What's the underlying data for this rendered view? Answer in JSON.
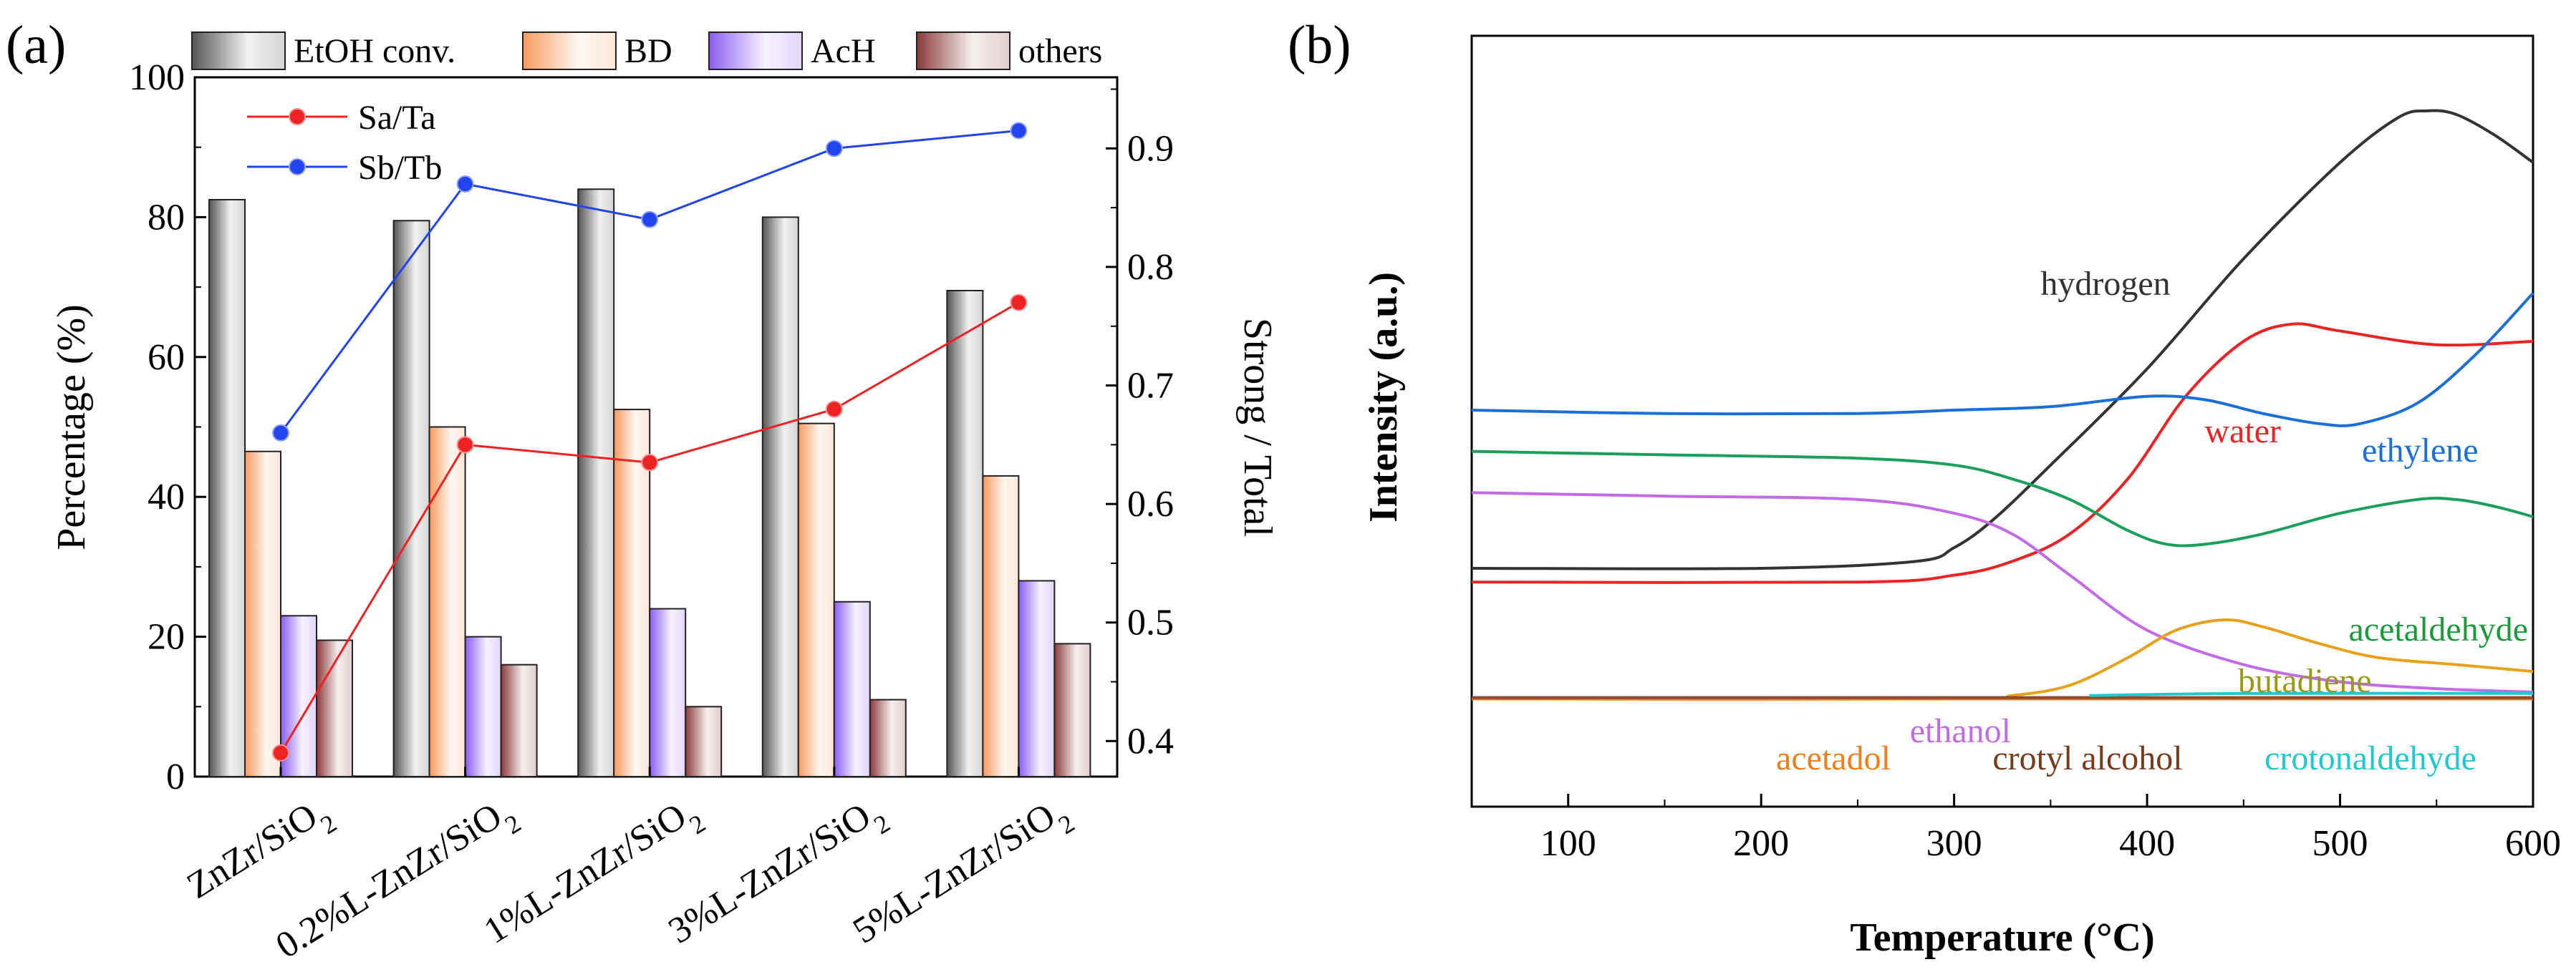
{
  "chart_data": [
    {
      "panel": "(a)",
      "type": "bar",
      "ylabel": "Percentage (%)",
      "y2label": "Strong / Total",
      "ylim": [
        0,
        100
      ],
      "y2lim": [
        0.37,
        0.96
      ],
      "yticks": [
        "0",
        "20",
        "40",
        "60",
        "80",
        "100"
      ],
      "y2ticks": [
        "0.4",
        "0.5",
        "0.6",
        "0.7",
        "0.8",
        "0.9"
      ],
      "categories": [
        {
          "base": "ZnZr/SiO",
          "sub": "2"
        },
        {
          "base": "0.2%L-ZnZr/SiO",
          "sub": "2"
        },
        {
          "base": "1%L-ZnZr/SiO",
          "sub": "2"
        },
        {
          "base": "3%L-ZnZr/SiO",
          "sub": "2"
        },
        {
          "base": "5%L-ZnZr/SiO",
          "sub": "2"
        }
      ],
      "series": [
        {
          "name": "EtOH conv.",
          "values": [
            82.5,
            79.5,
            84.0,
            80.0,
            69.5
          ],
          "color": "#555555"
        },
        {
          "name": "BD",
          "values": [
            46.5,
            50.0,
            52.5,
            50.5,
            43.0
          ],
          "color": "#f79a5e"
        },
        {
          "name": "AcH",
          "values": [
            23.0,
            20.0,
            24.0,
            25.0,
            28.0
          ],
          "color": "#8a5cf0"
        },
        {
          "name": "others",
          "values": [
            19.5,
            16.0,
            10.0,
            11.0,
            19.0
          ],
          "color": "#8a3a3a"
        }
      ],
      "lines": [
        {
          "name": "Sa/Ta",
          "axis": "right",
          "values": [
            0.39,
            0.65,
            0.635,
            0.68,
            0.77
          ],
          "color": "#ee2222"
        },
        {
          "name": "Sb/Tb",
          "axis": "right",
          "values": [
            0.66,
            0.87,
            0.84,
            0.9,
            0.915
          ],
          "color": "#2244ee"
        }
      ]
    },
    {
      "panel": "(b)",
      "type": "line",
      "xlabel": "Temperature (°C)",
      "ylabel": "Intensity (a.u.)",
      "xlim": [
        50,
        600
      ],
      "xticks": [
        "100",
        "200",
        "300",
        "400",
        "500",
        "600"
      ],
      "ylim": [
        0,
        100
      ],
      "series": [
        {
          "name": "hydrogen",
          "color": "#333333",
          "x": [
            50,
            200,
            280,
            300,
            320,
            350,
            400,
            450,
            500,
            530,
            545,
            560,
            580,
            600
          ],
          "y": [
            23,
            23,
            24,
            26,
            30,
            38,
            52,
            68,
            82,
            88.5,
            89.5,
            89,
            86,
            82
          ]
        },
        {
          "name": "water",
          "color": "#ee2222",
          "x": [
            50,
            250,
            300,
            330,
            360,
            390,
            420,
            450,
            475,
            500,
            550,
            600
          ],
          "y": [
            21,
            21,
            22,
            24,
            28,
            36,
            48,
            56,
            58.5,
            57.5,
            55.5,
            56
          ]
        },
        {
          "name": "ethylene",
          "color": "#1a6fd8",
          "x": [
            50,
            150,
            250,
            300,
            350,
            400,
            430,
            460,
            490,
            510,
            540,
            570,
            600
          ],
          "y": [
            46,
            45.5,
            45.5,
            46,
            46.5,
            48,
            47.5,
            45.5,
            44,
            44,
            47,
            54,
            63
          ]
        },
        {
          "name": "acetaldehyde",
          "color": "#1aa05a",
          "x": [
            50,
            150,
            250,
            300,
            330,
            360,
            390,
            410,
            430,
            460,
            500,
            540,
            560,
            580,
            600
          ],
          "y": [
            40,
            39.5,
            39,
            38,
            36,
            33,
            28.5,
            26.5,
            26.5,
            28,
            31,
            33,
            33,
            32,
            30.5
          ]
        },
        {
          "name": "ethanol",
          "color": "#c26be6",
          "x": [
            50,
            150,
            250,
            300,
            330,
            360,
            400,
            450,
            500,
            550,
            600
          ],
          "y": [
            34,
            33.5,
            33,
            31,
            28,
            22,
            14,
            9,
            6.5,
            5.5,
            5
          ]
        },
        {
          "name": "butadiene",
          "color": "#e8a21a",
          "x": [
            50,
            300,
            330,
            360,
            390,
            415,
            440,
            460,
            490,
            520,
            560,
            600
          ],
          "y": [
            4,
            4,
            4.5,
            6,
            10,
            14,
            15.5,
            14.5,
            12,
            10,
            9,
            8
          ]
        },
        {
          "name": "acetadol",
          "color": "#f07e1a",
          "x": [
            50,
            600
          ],
          "y": [
            4,
            4
          ]
        },
        {
          "name": "crotyl alcohol",
          "color": "#8b4a2a",
          "x": [
            50,
            600
          ],
          "y": [
            4.2,
            4.2
          ]
        },
        {
          "name": "crotonaldehyde",
          "color": "#22c8d0",
          "x": [
            370,
            450,
            600
          ],
          "y": [
            4.5,
            4.8,
            4.8
          ]
        }
      ]
    }
  ]
}
